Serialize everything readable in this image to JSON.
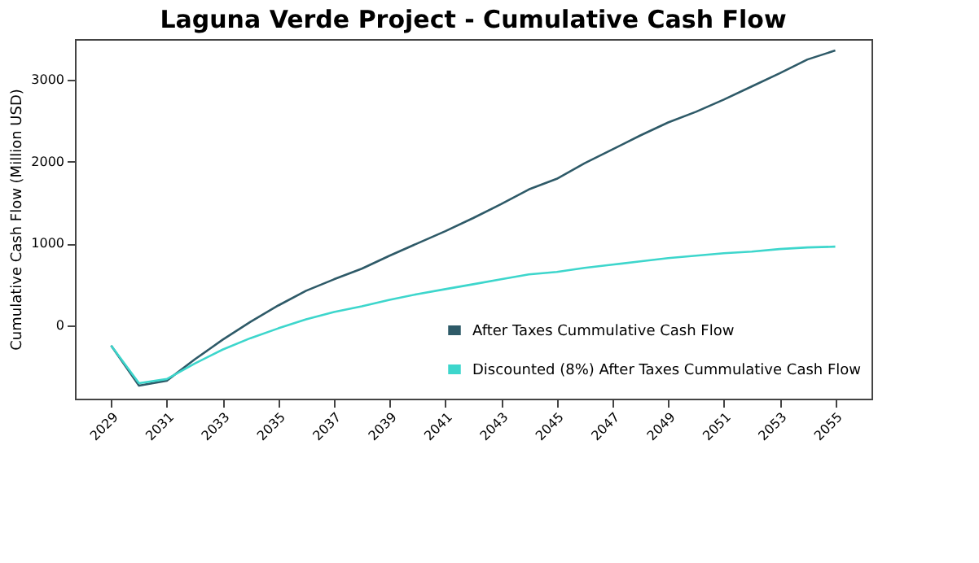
{
  "chart_data": {
    "type": "line",
    "title": "Laguna Verde Project - Cumulative Cash Flow",
    "ylabel": "Cumulative Cash Flow (Million USD)",
    "x": [
      2029,
      2030,
      2031,
      2032,
      2033,
      2034,
      2035,
      2036,
      2037,
      2038,
      2039,
      2040,
      2041,
      2042,
      2043,
      2044,
      2045,
      2046,
      2047,
      2048,
      2049,
      2050,
      2051,
      2052,
      2053,
      2054,
      2055
    ],
    "series": [
      {
        "name": "After Taxes Cummulative Cash Flow",
        "color": "#2e5a68",
        "values": [
          -250,
          -740,
          -680,
          -420,
          -180,
          40,
          240,
          420,
          560,
          690,
          850,
          1000,
          1150,
          1310,
          1480,
          1660,
          1790,
          1980,
          2150,
          2320,
          2480,
          2610,
          2760,
          2920,
          3080,
          3250,
          3360
        ]
      },
      {
        "name": "Discounted (8%) After Taxes Cummulative Cash Flow",
        "color": "#3dd6cc",
        "values": [
          -250,
          -710,
          -660,
          -470,
          -300,
          -160,
          -40,
          70,
          160,
          230,
          310,
          380,
          440,
          500,
          560,
          620,
          650,
          700,
          740,
          780,
          820,
          850,
          880,
          900,
          930,
          950,
          960
        ]
      }
    ],
    "xlim": [
      2027.7,
      2056.3
    ],
    "xticks": [
      2029,
      2031,
      2033,
      2035,
      2037,
      2039,
      2041,
      2043,
      2045,
      2047,
      2049,
      2051,
      2053,
      2055
    ],
    "ylim": [
      -900,
      3500
    ],
    "yticks": [
      0,
      1000,
      2000,
      3000
    ],
    "grid": false,
    "legend": "bottom right",
    "marker": "none",
    "line_style": "solid"
  }
}
